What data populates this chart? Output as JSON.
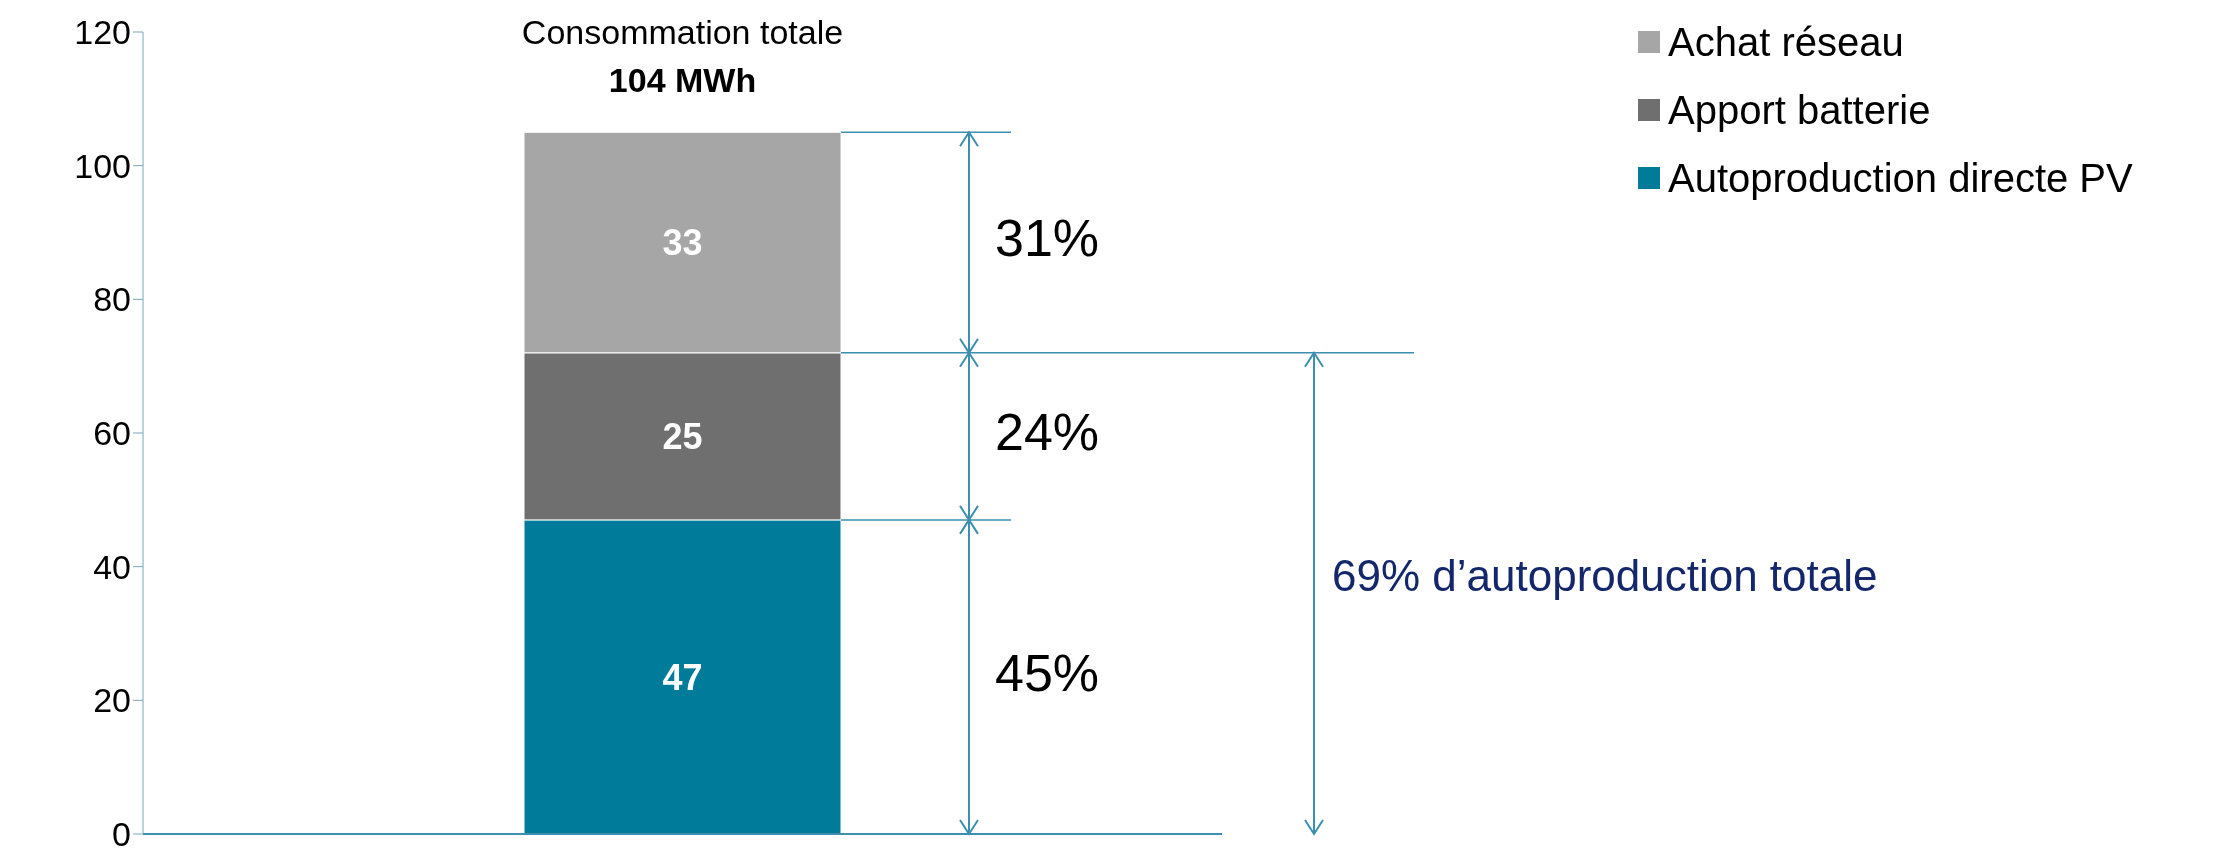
{
  "chart_data": {
    "type": "bar",
    "stacked": true,
    "categories": [
      null
    ],
    "series": [
      {
        "name": "Autoproduction directe PV",
        "color": "#007b9a",
        "values": [
          47
        ]
      },
      {
        "name": "Apport batterie",
        "color": "#6f6f6f",
        "values": [
          25
        ]
      },
      {
        "name": "Achat réseau",
        "color": "#a6a6a6",
        "values": [
          33
        ]
      }
    ],
    "ylim": [
      0,
      120
    ],
    "yticks": [
      0,
      20,
      40,
      60,
      80,
      100,
      120
    ],
    "grid": false,
    "legend": "top right",
    "data_labels": true,
    "totals": [
      "104 MWh"
    ],
    "annotations": [
      "Consommation totale",
      "31%",
      "24%",
      "45%",
      "69% d’autoproduction totale"
    ]
  }
}
